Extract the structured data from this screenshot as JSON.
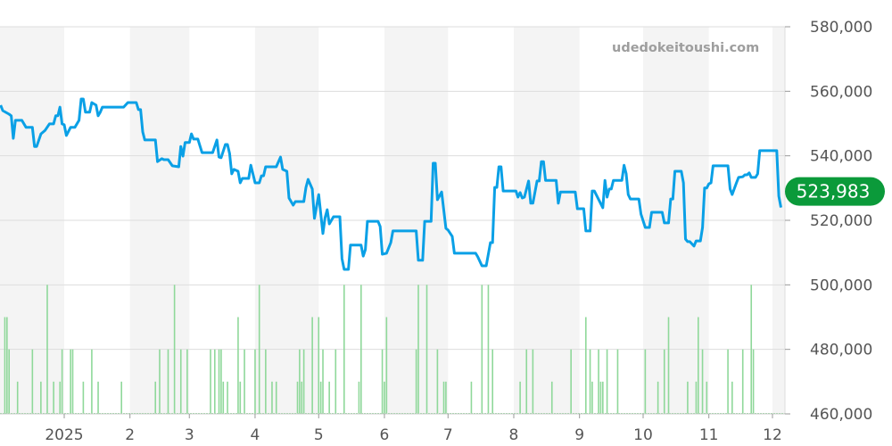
{
  "watermark": "udedokeitoushi.com",
  "current_price_label": "523,983",
  "colors": {
    "line": "#0aa0e6",
    "volume": "#8fd89a",
    "badge": "#0b9a3a",
    "band": "#f4f4f4",
    "grid": "#dddddd"
  },
  "chart_data": {
    "type": "line",
    "title": "",
    "xlabel": "",
    "ylabel": "",
    "ylim": [
      460000,
      580000
    ],
    "xlim": [
      "2024-12-02",
      "2025-12-07"
    ],
    "grid": true,
    "y_ticks": [
      "580,000",
      "560,000",
      "540,000",
      "520,000",
      "500,000",
      "480,000",
      "460,000"
    ],
    "y_tick_values": [
      580000,
      560000,
      540000,
      520000,
      500000,
      480000,
      460000
    ],
    "x_ticks": [
      {
        "date": "2025-01-01",
        "label": "2025"
      },
      {
        "date": "2025-02-01",
        "label": "2"
      },
      {
        "date": "2025-03-01",
        "label": "3"
      },
      {
        "date": "2025-04-01",
        "label": "4"
      },
      {
        "date": "2025-05-01",
        "label": "5"
      },
      {
        "date": "2025-06-01",
        "label": "6"
      },
      {
        "date": "2025-07-01",
        "label": "7"
      },
      {
        "date": "2025-08-01",
        "label": "8"
      },
      {
        "date": "2025-09-01",
        "label": "9"
      },
      {
        "date": "2025-10-01",
        "label": "10"
      },
      {
        "date": "2025-11-01",
        "label": "11"
      },
      {
        "date": "2025-12-01",
        "label": "12"
      }
    ],
    "shaded_months": [
      "2024-12",
      "2025-02",
      "2025-04",
      "2025-06",
      "2025-08",
      "2025-10",
      "2025-12"
    ],
    "price": [
      [
        "2024-12-02",
        555700
      ],
      [
        "2024-12-03",
        554000
      ],
      [
        "2024-12-06",
        552900
      ],
      [
        "2024-12-07",
        552400
      ],
      [
        "2024-12-08",
        545400
      ],
      [
        "2024-12-09",
        551000
      ],
      [
        "2024-12-12",
        551000
      ],
      [
        "2024-12-14",
        548800
      ],
      [
        "2024-12-17",
        548800
      ],
      [
        "2024-12-18",
        542900
      ],
      [
        "2024-12-19",
        542900
      ],
      [
        "2024-12-21",
        546800
      ],
      [
        "2024-12-23",
        547900
      ],
      [
        "2024-12-25",
        549900
      ],
      [
        "2024-12-27",
        549900
      ],
      [
        "2024-12-28",
        552400
      ],
      [
        "2024-12-29",
        552400
      ],
      [
        "2024-12-30",
        555100
      ],
      [
        "2024-12-31",
        549900
      ],
      [
        "2025-01-01",
        549600
      ],
      [
        "2025-01-02",
        546300
      ],
      [
        "2025-01-04",
        548800
      ],
      [
        "2025-01-06",
        548800
      ],
      [
        "2025-01-08",
        551000
      ],
      [
        "2025-01-09",
        557600
      ],
      [
        "2025-01-10",
        557600
      ],
      [
        "2025-01-11",
        553500
      ],
      [
        "2025-01-13",
        553500
      ],
      [
        "2025-01-14",
        556500
      ],
      [
        "2025-01-16",
        555700
      ],
      [
        "2025-01-17",
        552400
      ],
      [
        "2025-01-18",
        553500
      ],
      [
        "2025-01-19",
        555100
      ],
      [
        "2025-01-29",
        555100
      ],
      [
        "2025-01-31",
        556500
      ],
      [
        "2025-02-04",
        556500
      ],
      [
        "2025-02-05",
        554300
      ],
      [
        "2025-02-06",
        554300
      ],
      [
        "2025-02-07",
        547400
      ],
      [
        "2025-02-08",
        544900
      ],
      [
        "2025-02-13",
        544900
      ],
      [
        "2025-02-14",
        538200
      ],
      [
        "2025-02-16",
        539100
      ],
      [
        "2025-02-17",
        538800
      ],
      [
        "2025-02-19",
        538800
      ],
      [
        "2025-02-21",
        536900
      ],
      [
        "2025-02-24",
        536600
      ],
      [
        "2025-02-25",
        542900
      ],
      [
        "2025-02-26",
        539900
      ],
      [
        "2025-02-27",
        544100
      ],
      [
        "2025-03-01",
        544100
      ],
      [
        "2025-03-02",
        546800
      ],
      [
        "2025-03-03",
        545200
      ],
      [
        "2025-03-05",
        545200
      ],
      [
        "2025-03-07",
        541000
      ],
      [
        "2025-03-12",
        541000
      ],
      [
        "2025-03-14",
        544900
      ],
      [
        "2025-03-15",
        539600
      ],
      [
        "2025-03-16",
        539400
      ],
      [
        "2025-03-18",
        543500
      ],
      [
        "2025-03-19",
        543500
      ],
      [
        "2025-03-20",
        540700
      ],
      [
        "2025-03-21",
        534400
      ],
      [
        "2025-03-22",
        535800
      ],
      [
        "2025-03-24",
        535200
      ],
      [
        "2025-03-25",
        531600
      ],
      [
        "2025-03-26",
        533000
      ],
      [
        "2025-03-29",
        533000
      ],
      [
        "2025-03-30",
        537100
      ],
      [
        "2025-04-01",
        531600
      ],
      [
        "2025-04-03",
        531600
      ],
      [
        "2025-04-04",
        533800
      ],
      [
        "2025-04-05",
        533800
      ],
      [
        "2025-04-06",
        536600
      ],
      [
        "2025-04-11",
        536600
      ],
      [
        "2025-04-13",
        539600
      ],
      [
        "2025-04-14",
        535800
      ],
      [
        "2025-04-16",
        535200
      ],
      [
        "2025-04-17",
        526900
      ],
      [
        "2025-04-19",
        524700
      ],
      [
        "2025-04-20",
        525800
      ],
      [
        "2025-04-24",
        525800
      ],
      [
        "2025-04-25",
        530200
      ],
      [
        "2025-04-26",
        532700
      ],
      [
        "2025-04-28",
        529700
      ],
      [
        "2025-04-29",
        520600
      ],
      [
        "2025-05-01",
        528000
      ],
      [
        "2025-05-03",
        515900
      ],
      [
        "2025-05-04",
        520800
      ],
      [
        "2025-05-05",
        523300
      ],
      [
        "2025-05-06",
        518900
      ],
      [
        "2025-05-08",
        521100
      ],
      [
        "2025-05-11",
        521100
      ],
      [
        "2025-05-12",
        508100
      ],
      [
        "2025-05-13",
        504800
      ],
      [
        "2025-05-15",
        504800
      ],
      [
        "2025-05-16",
        512300
      ],
      [
        "2025-05-21",
        512300
      ],
      [
        "2025-05-22",
        508900
      ],
      [
        "2025-05-23",
        510900
      ],
      [
        "2025-05-24",
        519700
      ],
      [
        "2025-05-29",
        519700
      ],
      [
        "2025-05-30",
        518100
      ],
      [
        "2025-05-31",
        509500
      ],
      [
        "2025-06-02",
        509800
      ],
      [
        "2025-06-04",
        513100
      ],
      [
        "2025-06-05",
        516700
      ],
      [
        "2025-06-16",
        516700
      ],
      [
        "2025-06-17",
        507600
      ],
      [
        "2025-06-19",
        507600
      ],
      [
        "2025-06-20",
        519700
      ],
      [
        "2025-06-23",
        519700
      ],
      [
        "2025-06-24",
        537700
      ],
      [
        "2025-06-25",
        537700
      ],
      [
        "2025-06-26",
        526400
      ],
      [
        "2025-06-28",
        528800
      ],
      [
        "2025-06-30",
        517500
      ],
      [
        "2025-07-01",
        517000
      ],
      [
        "2025-07-03",
        515000
      ],
      [
        "2025-07-04",
        509800
      ],
      [
        "2025-07-14",
        509800
      ],
      [
        "2025-07-15",
        508700
      ],
      [
        "2025-07-17",
        505900
      ],
      [
        "2025-07-19",
        505900
      ],
      [
        "2025-07-21",
        513100
      ],
      [
        "2025-07-22",
        513100
      ],
      [
        "2025-07-23",
        530200
      ],
      [
        "2025-07-24",
        530200
      ],
      [
        "2025-07-25",
        536600
      ],
      [
        "2025-07-26",
        536600
      ],
      [
        "2025-07-27",
        529100
      ],
      [
        "2025-08-02",
        529100
      ],
      [
        "2025-08-03",
        527200
      ],
      [
        "2025-08-04",
        528600
      ],
      [
        "2025-08-05",
        526900
      ],
      [
        "2025-08-06",
        527200
      ],
      [
        "2025-08-08",
        532200
      ],
      [
        "2025-08-09",
        525300
      ],
      [
        "2025-08-10",
        525300
      ],
      [
        "2025-08-12",
        532200
      ],
      [
        "2025-08-13",
        532200
      ],
      [
        "2025-08-14",
        538200
      ],
      [
        "2025-08-15",
        538200
      ],
      [
        "2025-08-16",
        532400
      ],
      [
        "2025-08-21",
        532400
      ],
      [
        "2025-08-22",
        525300
      ],
      [
        "2025-08-23",
        528800
      ],
      [
        "2025-08-30",
        528800
      ],
      [
        "2025-08-31",
        523600
      ],
      [
        "2025-09-03",
        523600
      ],
      [
        "2025-09-04",
        516700
      ],
      [
        "2025-09-06",
        516700
      ],
      [
        "2025-09-07",
        529100
      ],
      [
        "2025-09-08",
        529100
      ],
      [
        "2025-09-12",
        523900
      ],
      [
        "2025-09-13",
        532400
      ],
      [
        "2025-09-14",
        527200
      ],
      [
        "2025-09-15",
        529700
      ],
      [
        "2025-09-16",
        529700
      ],
      [
        "2025-09-17",
        532400
      ],
      [
        "2025-09-21",
        532400
      ],
      [
        "2025-09-22",
        537100
      ],
      [
        "2025-09-23",
        534400
      ],
      [
        "2025-09-24",
        528000
      ],
      [
        "2025-09-25",
        526600
      ],
      [
        "2025-09-29",
        526600
      ],
      [
        "2025-09-30",
        521900
      ],
      [
        "2025-10-02",
        517800
      ],
      [
        "2025-10-04",
        517800
      ],
      [
        "2025-10-05",
        522500
      ],
      [
        "2025-10-10",
        522500
      ],
      [
        "2025-10-11",
        519200
      ],
      [
        "2025-10-13",
        519200
      ],
      [
        "2025-10-14",
        526600
      ],
      [
        "2025-10-15",
        526600
      ],
      [
        "2025-10-16",
        535200
      ],
      [
        "2025-10-19",
        535200
      ],
      [
        "2025-10-20",
        531600
      ],
      [
        "2025-10-21",
        514200
      ],
      [
        "2025-10-22",
        513400
      ],
      [
        "2025-10-23",
        513400
      ],
      [
        "2025-10-25",
        512000
      ],
      [
        "2025-10-26",
        513600
      ],
      [
        "2025-10-28",
        513600
      ],
      [
        "2025-10-29",
        517800
      ],
      [
        "2025-10-30",
        530000
      ],
      [
        "2025-10-31",
        530000
      ],
      [
        "2025-11-01",
        531300
      ],
      [
        "2025-11-02",
        531600
      ],
      [
        "2025-11-03",
        536900
      ],
      [
        "2025-11-10",
        536900
      ],
      [
        "2025-11-11",
        529700
      ],
      [
        "2025-11-12",
        528000
      ],
      [
        "2025-11-14",
        531600
      ],
      [
        "2025-11-15",
        533300
      ],
      [
        "2025-11-17",
        533500
      ],
      [
        "2025-11-18",
        534100
      ],
      [
        "2025-11-19",
        534100
      ],
      [
        "2025-11-20",
        534700
      ],
      [
        "2025-11-21",
        533300
      ],
      [
        "2025-11-23",
        533300
      ],
      [
        "2025-11-24",
        534400
      ],
      [
        "2025-11-25",
        541600
      ],
      [
        "2025-12-03",
        541600
      ],
      [
        "2025-12-04",
        527500
      ],
      [
        "2025-12-05",
        523983
      ]
    ],
    "volume": [
      [
        "2024-12-04",
        3
      ],
      [
        "2024-12-05",
        3
      ],
      [
        "2024-12-06",
        2
      ],
      [
        "2024-12-10",
        1
      ],
      [
        "2024-12-17",
        2
      ],
      [
        "2024-12-21",
        1
      ],
      [
        "2024-12-24",
        4
      ],
      [
        "2024-12-27",
        1
      ],
      [
        "2024-12-30",
        1
      ],
      [
        "2024-12-31",
        2
      ],
      [
        "2025-01-04",
        2
      ],
      [
        "2025-01-05",
        2
      ],
      [
        "2025-01-10",
        1
      ],
      [
        "2025-01-14",
        2
      ],
      [
        "2025-01-17",
        1
      ],
      [
        "2025-01-28",
        1
      ],
      [
        "2025-02-13",
        1
      ],
      [
        "2025-02-15",
        2
      ],
      [
        "2025-02-19",
        2
      ],
      [
        "2025-02-22",
        4
      ],
      [
        "2025-02-25",
        2
      ],
      [
        "2025-02-28",
        2
      ],
      [
        "2025-03-11",
        2
      ],
      [
        "2025-03-13",
        2
      ],
      [
        "2025-03-15",
        2
      ],
      [
        "2025-03-16",
        2
      ],
      [
        "2025-03-17",
        1
      ],
      [
        "2025-03-19",
        1
      ],
      [
        "2025-03-24",
        3
      ],
      [
        "2025-03-25",
        1
      ],
      [
        "2025-03-27",
        2
      ],
      [
        "2025-04-01",
        2
      ],
      [
        "2025-04-03",
        4
      ],
      [
        "2025-04-06",
        2
      ],
      [
        "2025-04-09",
        1
      ],
      [
        "2025-04-11",
        1
      ],
      [
        "2025-04-21",
        1
      ],
      [
        "2025-04-22",
        2
      ],
      [
        "2025-04-23",
        1
      ],
      [
        "2025-04-24",
        2
      ],
      [
        "2025-04-28",
        3
      ],
      [
        "2025-05-01",
        3
      ],
      [
        "2025-05-02",
        1
      ],
      [
        "2025-05-03",
        2
      ],
      [
        "2025-05-06",
        1
      ],
      [
        "2025-05-09",
        2
      ],
      [
        "2025-05-13",
        4
      ],
      [
        "2025-05-20",
        1
      ],
      [
        "2025-05-21",
        4
      ],
      [
        "2025-05-31",
        2
      ],
      [
        "2025-06-01",
        1
      ],
      [
        "2025-06-02",
        3
      ],
      [
        "2025-06-16",
        2
      ],
      [
        "2025-06-17",
        4
      ],
      [
        "2025-06-21",
        4
      ],
      [
        "2025-06-26",
        2
      ],
      [
        "2025-06-29",
        1
      ],
      [
        "2025-06-30",
        1
      ],
      [
        "2025-07-12",
        1
      ],
      [
        "2025-07-17",
        4
      ],
      [
        "2025-07-20",
        4
      ],
      [
        "2025-07-22",
        2
      ],
      [
        "2025-08-04",
        1
      ],
      [
        "2025-08-07",
        2
      ],
      [
        "2025-08-10",
        2
      ],
      [
        "2025-08-19",
        1
      ],
      [
        "2025-08-28",
        2
      ],
      [
        "2025-09-04",
        3
      ],
      [
        "2025-09-06",
        2
      ],
      [
        "2025-09-07",
        1
      ],
      [
        "2025-09-10",
        2
      ],
      [
        "2025-09-11",
        1
      ],
      [
        "2025-09-12",
        1
      ],
      [
        "2025-09-14",
        2
      ],
      [
        "2025-09-19",
        2
      ],
      [
        "2025-10-02",
        2
      ],
      [
        "2025-10-08",
        1
      ],
      [
        "2025-10-11",
        2
      ],
      [
        "2025-10-13",
        3
      ],
      [
        "2025-10-22",
        1
      ],
      [
        "2025-10-26",
        1
      ],
      [
        "2025-10-27",
        3
      ],
      [
        "2025-10-29",
        2
      ],
      [
        "2025-10-31",
        1
      ],
      [
        "2025-11-10",
        2
      ],
      [
        "2025-11-12",
        1
      ],
      [
        "2025-11-17",
        2
      ],
      [
        "2025-11-21",
        4
      ],
      [
        "2025-11-22",
        2
      ]
    ],
    "volume_max": 4
  }
}
